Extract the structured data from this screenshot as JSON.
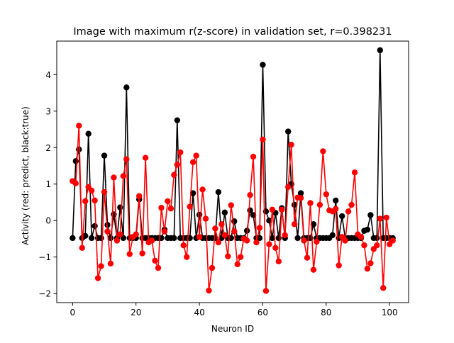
{
  "chart_data": {
    "type": "line",
    "title": "Image with maximum r(z-score) in validation set, r=0.398231",
    "xlabel": "Neuron ID",
    "ylabel": "Activity (red: predict, black:true)",
    "xlim": [
      -5,
      106
    ],
    "ylim": [
      -2.25,
      4.92
    ],
    "xticks": [
      0,
      20,
      40,
      60,
      80,
      100
    ],
    "yticks": [
      -2,
      -1,
      0,
      1,
      2,
      3,
      4
    ],
    "grid": false,
    "series": [
      {
        "name": "true",
        "color": "#000000",
        "values": [
          -0.48,
          1.63,
          1.95,
          -0.48,
          -0.42,
          2.38,
          -0.48,
          -0.15,
          -0.48,
          -0.48,
          1.78,
          -0.12,
          -0.48,
          0.17,
          -0.48,
          0.36,
          -0.48,
          3.65,
          -0.48,
          -0.48,
          -0.48,
          0.58,
          -0.48,
          -0.48,
          -0.48,
          -0.48,
          -0.48,
          -0.48,
          -0.48,
          -0.25,
          -0.48,
          -0.48,
          -0.48,
          2.75,
          -0.48,
          -0.48,
          -0.48,
          -0.48,
          0.75,
          -0.48,
          0.16,
          -0.48,
          -0.48,
          -0.48,
          -0.48,
          -0.48,
          0.78,
          -0.48,
          0.22,
          -0.48,
          -0.48,
          -0.02,
          -0.48,
          -0.48,
          -0.48,
          -0.28,
          0.28,
          0.15,
          -0.48,
          -0.48,
          4.27,
          0.25,
          0.0,
          -0.48,
          0.21,
          -0.48,
          0.34,
          -0.48,
          2.44,
          1.0,
          0.43,
          -0.48,
          0.75,
          -0.48,
          -0.48,
          -0.48,
          -0.1,
          -0.48,
          -0.48,
          -0.48,
          -0.48,
          -0.48,
          -0.4,
          0.55,
          -0.48,
          0.12,
          -0.48,
          -0.48,
          -0.48,
          -0.48,
          -0.48,
          -0.48,
          -0.28,
          -0.25,
          0.15,
          -0.48,
          -0.48,
          4.67,
          -0.48,
          -0.48,
          -0.48,
          -0.48
        ]
      },
      {
        "name": "predict",
        "color": "#ff0000",
        "values": [
          1.08,
          1.02,
          2.6,
          -0.75,
          0.53,
          0.92,
          0.82,
          0.55,
          -1.58,
          -1.25,
          0.78,
          -0.3,
          -1.18,
          1.18,
          -0.55,
          -0.38,
          1.22,
          1.68,
          -0.92,
          -0.45,
          -0.38,
          0.67,
          -0.9,
          1.72,
          -0.6,
          -0.55,
          -1.1,
          -1.3,
          0.35,
          -0.3,
          0.53,
          0.33,
          1.25,
          1.53,
          1.87,
          -0.68,
          -1.0,
          0.38,
          1.6,
          1.78,
          -0.45,
          0.85,
          0.05,
          -1.92,
          -1.3,
          -0.22,
          -0.6,
          -0.1,
          -0.4,
          -0.98,
          0.42,
          -0.3,
          -1.2,
          -1.0,
          -0.5,
          -0.55,
          0.7,
          1.75,
          -0.6,
          -0.2,
          2.22,
          -1.93,
          -0.65,
          0.3,
          -0.75,
          -1.12,
          0.3,
          -0.4,
          0.92,
          2.08,
          -0.1,
          0.63,
          0.62,
          -0.55,
          -1.02,
          0.48,
          -1.35,
          -0.58,
          0.43,
          1.9,
          0.72,
          0.28,
          0.25,
          0.32,
          -1.23,
          -0.45,
          -0.55,
          0.25,
          0.43,
          1.32,
          -0.38,
          -0.45,
          -0.68,
          -1.32,
          -1.17,
          -0.78,
          -0.68,
          0.05,
          -1.85,
          0.08,
          -0.65,
          -0.55
        ]
      }
    ]
  }
}
